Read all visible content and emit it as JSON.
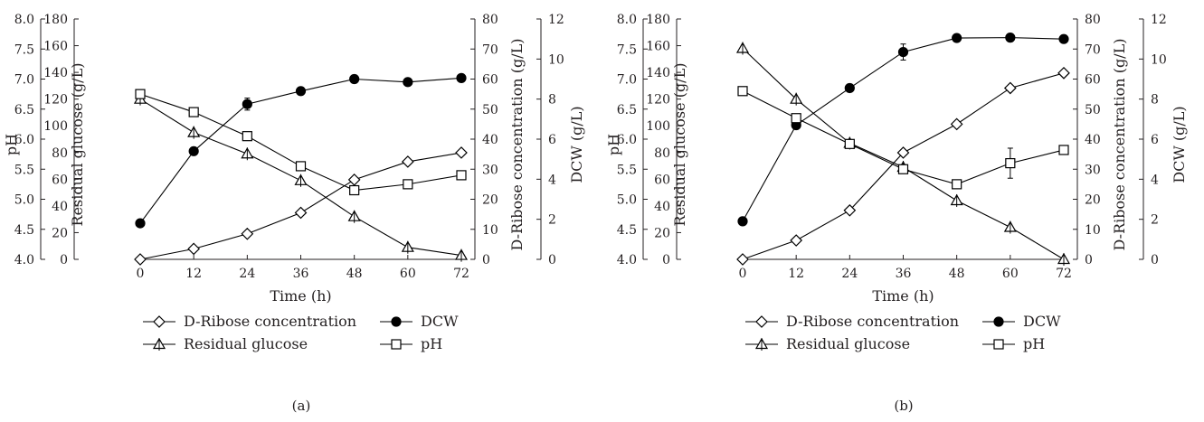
{
  "chart_data": [
    {
      "type": "line",
      "caption": "(a)",
      "xlabel": "Time (h)",
      "x": [
        0,
        12,
        24,
        36,
        48,
        60,
        72
      ],
      "x_ticks": [
        "0",
        "12",
        "24",
        "36",
        "48",
        "60",
        "72"
      ],
      "xlim": [
        0,
        72
      ],
      "axes": {
        "ph": {
          "label": "pH",
          "lim": [
            4.0,
            8.0
          ],
          "ticks": [
            "4.0",
            "4.5",
            "5.0",
            "5.5",
            "6.0",
            "6.5",
            "7.0",
            "7.5",
            "8.0"
          ]
        },
        "glucose": {
          "label": "Residual glucose (g/L)",
          "lim": [
            0,
            180
          ],
          "ticks": [
            "0",
            "20",
            "40",
            "60",
            "80",
            "100",
            "120",
            "140",
            "160",
            "180"
          ]
        },
        "ribose": {
          "label": "D-Ribose concentration (g/L)",
          "lim": [
            0,
            80
          ],
          "ticks": [
            "0",
            "10",
            "20",
            "30",
            "40",
            "50",
            "60",
            "70",
            "80"
          ]
        },
        "dcw": {
          "label": "DCW (g/L)",
          "lim": [
            0,
            12
          ],
          "ticks": [
            "0",
            "2",
            "4",
            "6",
            "8",
            "10",
            "12"
          ]
        }
      },
      "series": [
        {
          "name": "D-Ribose concentration",
          "axis": "ribose",
          "marker": "diamond",
          "values": [
            0,
            3.5,
            8.5,
            15.5,
            26.5,
            32.5,
            35.5
          ]
        },
        {
          "name": "DCW",
          "axis": "dcw",
          "marker": "circle",
          "values": [
            1.8,
            5.4,
            7.75,
            8.4,
            9.0,
            8.85,
            9.05
          ],
          "errors": [
            0,
            0,
            0.3,
            0,
            0,
            0,
            0
          ]
        },
        {
          "name": "Residual glucose",
          "axis": "glucose",
          "marker": "triangle",
          "values": [
            120,
            95,
            79,
            59,
            32,
            9,
            3
          ]
        },
        {
          "name": "pH",
          "axis": "ph",
          "marker": "square",
          "values": [
            6.75,
            6.45,
            6.05,
            5.55,
            5.15,
            5.25,
            5.4
          ]
        }
      ],
      "legend": [
        "D-Ribose concentration",
        "DCW",
        "Residual glucose",
        "pH"
      ]
    },
    {
      "type": "line",
      "caption": "(b)",
      "xlabel": "Time (h)",
      "x": [
        0,
        12,
        24,
        36,
        48,
        60,
        72
      ],
      "x_ticks": [
        "0",
        "12",
        "24",
        "36",
        "48",
        "60",
        "72"
      ],
      "xlim": [
        0,
        72
      ],
      "axes": {
        "ph": {
          "label": "pH",
          "lim": [
            4.0,
            8.0
          ],
          "ticks": [
            "4.0",
            "4.5",
            "5.0",
            "5.5",
            "6.0",
            "6.5",
            "7.0",
            "7.5",
            "8.0"
          ]
        },
        "glucose": {
          "label": "Residual glucose (g/L)",
          "lim": [
            0,
            180
          ],
          "ticks": [
            "0",
            "20",
            "40",
            "60",
            "80",
            "100",
            "120",
            "140",
            "160",
            "180"
          ]
        },
        "ribose": {
          "label": "D-Ribose concentration (g/L)",
          "lim": [
            0,
            80
          ],
          "ticks": [
            "0",
            "10",
            "20",
            "30",
            "40",
            "50",
            "60",
            "70",
            "80"
          ]
        },
        "dcw": {
          "label": "DCW (g/L)",
          "lim": [
            0,
            12
          ],
          "ticks": [
            "0",
            "2",
            "4",
            "6",
            "8",
            "10",
            "12"
          ]
        }
      },
      "series": [
        {
          "name": "D-Ribose concentration",
          "axis": "ribose",
          "marker": "diamond",
          "values": [
            0,
            6.3,
            16.3,
            35.5,
            45.0,
            57.0,
            62.0
          ]
        },
        {
          "name": "DCW",
          "axis": "dcw",
          "marker": "circle",
          "values": [
            1.9,
            6.7,
            8.55,
            10.35,
            11.05,
            11.07,
            11.0
          ],
          "errors": [
            0,
            0,
            0,
            0.4,
            0,
            0,
            0
          ]
        },
        {
          "name": "Residual glucose",
          "axis": "glucose",
          "marker": "triangle",
          "values": [
            158,
            120,
            87,
            69,
            44,
            24,
            0
          ]
        },
        {
          "name": "pH",
          "axis": "ph",
          "marker": "square",
          "values": [
            6.8,
            6.35,
            5.92,
            5.5,
            5.25,
            5.6,
            5.82
          ],
          "errors": [
            0,
            0,
            0,
            0,
            0,
            0.25,
            0
          ]
        }
      ],
      "legend": [
        "D-Ribose concentration",
        "DCW",
        "Residual glucose",
        "pH"
      ]
    }
  ]
}
